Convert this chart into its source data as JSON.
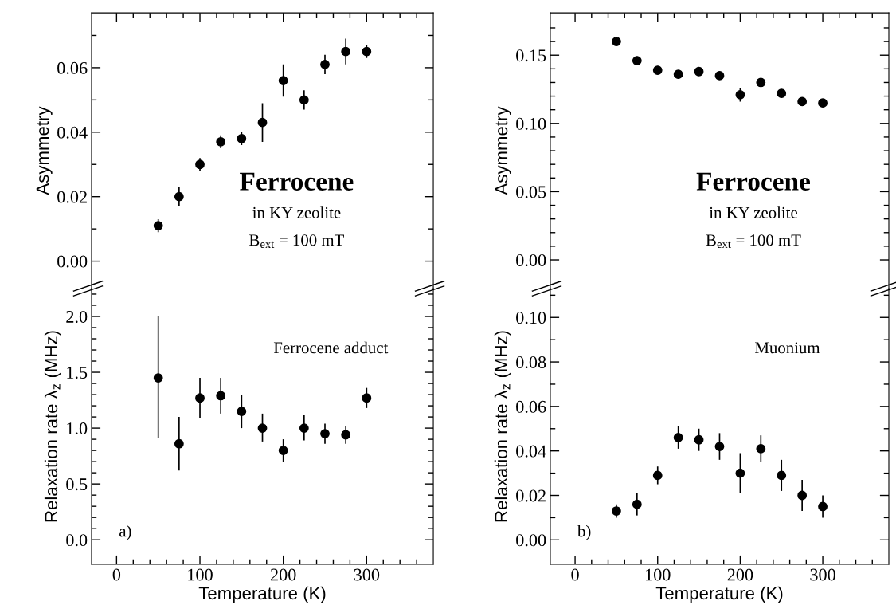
{
  "chart_data": [
    {
      "type": "scatter",
      "color": "#000000",
      "marker": "circle",
      "tick_labels": "y",
      "ylabel": "Asymmetry",
      "x": [
        50,
        75,
        100,
        125,
        150,
        175,
        200,
        225,
        250,
        275,
        300
      ],
      "values": [
        0.011,
        0.02,
        0.03,
        0.037,
        0.038,
        0.043,
        0.056,
        0.05,
        0.061,
        0.065,
        0.065
      ],
      "errors": [
        0.002,
        0.003,
        0.002,
        0.002,
        0.002,
        0.006,
        0.005,
        0.003,
        0.003,
        0.004,
        0.002
      ],
      "xlim": [
        -30,
        380
      ],
      "xticks": [
        0,
        {
          "value": 20,
          "label": null
        },
        {
          "value": 40,
          "label": null
        },
        {
          "value": 60,
          "label": null
        },
        {
          "value": 80,
          "label": null
        },
        100,
        {
          "value": 120,
          "label": null
        },
        {
          "value": 140,
          "label": null
        },
        {
          "value": 160,
          "label": null
        },
        {
          "value": 180,
          "label": null
        },
        200,
        {
          "value": 220,
          "label": null
        },
        {
          "value": 240,
          "label": null
        },
        {
          "value": 260,
          "label": null
        },
        {
          "value": 280,
          "label": null
        },
        300,
        {
          "value": 320,
          "label": null
        },
        {
          "value": 340,
          "label": null
        },
        {
          "value": 360,
          "label": null
        }
      ],
      "ylim": [
        -0.0085,
        0.077
      ],
      "yticks": [
        {
          "value": 0,
          "label": "0.00"
        },
        {
          "value": 0.01,
          "label": null
        },
        {
          "value": 0.02,
          "label": "0.02"
        },
        {
          "value": 0.03,
          "label": null
        },
        {
          "value": 0.04,
          "label": "0.04"
        },
        {
          "value": 0.05,
          "label": null
        },
        {
          "value": 0.06,
          "label": "0.06"
        },
        {
          "value": 0.07,
          "label": null
        }
      ],
      "annotations": [
        "Ferrocene",
        "in KY zeolite",
        "B$_{ext}$ = 100 mT"
      ]
    },
    {
      "type": "scatter",
      "color": "#000000",
      "marker": "circle",
      "xlabel": "Temperature (K)",
      "ylabel": "Relaxation rate λ$_{z}$ (MHz)",
      "x": [
        50,
        75,
        100,
        125,
        150,
        175,
        200,
        225,
        250,
        275,
        300
      ],
      "values": [
        1.45,
        0.86,
        1.27,
        1.29,
        1.15,
        1.0,
        0.8,
        1.0,
        0.95,
        0.94,
        1.27
      ],
      "errors": [
        [
          0.91,
          2.0
        ],
        [
          0.62,
          1.1
        ],
        0.18,
        [
          1.13,
          1.45
        ],
        [
          1.0,
          1.3
        ],
        [
          0.88,
          1.13
        ],
        0.1,
        [
          0.89,
          1.12
        ],
        0.09,
        0.08,
        0.09
      ],
      "xlim": [
        -30,
        380
      ],
      "xticks": [
        0,
        {
          "value": 20,
          "label": null
        },
        {
          "value": 40,
          "label": null
        },
        {
          "value": 60,
          "label": null
        },
        {
          "value": 80,
          "label": null
        },
        100,
        {
          "value": 120,
          "label": null
        },
        {
          "value": 140,
          "label": null
        },
        {
          "value": 160,
          "label": null
        },
        {
          "value": 180,
          "label": null
        },
        200,
        {
          "value": 220,
          "label": null
        },
        {
          "value": 240,
          "label": null
        },
        {
          "value": 260,
          "label": null
        },
        {
          "value": 280,
          "label": null
        },
        300,
        {
          "value": 320,
          "label": null
        },
        {
          "value": 340,
          "label": null
        },
        {
          "value": 360,
          "label": null
        }
      ],
      "ylim": [
        -0.22,
        2.25
      ],
      "yticks": [
        {
          "value": 0,
          "label": "0.0"
        },
        {
          "value": 0.1,
          "label": null
        },
        {
          "value": 0.2,
          "label": null
        },
        {
          "value": 0.3,
          "label": null
        },
        {
          "value": 0.4,
          "label": null
        },
        0.5,
        {
          "value": 0.6,
          "label": null
        },
        {
          "value": 0.7,
          "label": null
        },
        {
          "value": 0.8,
          "label": null
        },
        {
          "value": 0.9,
          "label": null
        },
        {
          "value": 1,
          "label": "1.0"
        },
        {
          "value": 1.1,
          "label": null
        },
        {
          "value": 1.2,
          "label": null
        },
        {
          "value": 1.3,
          "label": null
        },
        {
          "value": 1.4,
          "label": null
        },
        1.5,
        {
          "value": 1.6,
          "label": null
        },
        {
          "value": 1.7,
          "label": null
        },
        {
          "value": 1.8,
          "label": null
        },
        {
          "value": 1.9,
          "label": null
        },
        {
          "value": 2,
          "label": "2.0"
        },
        {
          "value": 2.1,
          "label": null
        },
        {
          "value": 2.2,
          "label": null
        }
      ],
      "annotations": [
        "Ferrocene adduct",
        "a)"
      ]
    },
    {
      "type": "scatter",
      "color": "#000000",
      "marker": "circle",
      "tick_labels": "y",
      "ylabel": "Asymmetry",
      "x": [
        50,
        75,
        100,
        125,
        150,
        175,
        200,
        225,
        250,
        275,
        300
      ],
      "values": [
        0.16,
        0.146,
        0.139,
        0.136,
        0.138,
        0.135,
        0.121,
        0.13,
        0.122,
        0.116,
        0.115
      ],
      "errors": [
        null,
        0.003,
        null,
        0.002,
        0.002,
        0.003,
        0.005,
        0.003,
        0.003,
        0.003,
        null
      ],
      "xlim": [
        -30,
        380
      ],
      "xticks": [
        0,
        {
          "value": 20,
          "label": null
        },
        {
          "value": 40,
          "label": null
        },
        {
          "value": 60,
          "label": null
        },
        {
          "value": 80,
          "label": null
        },
        100,
        {
          "value": 120,
          "label": null
        },
        {
          "value": 140,
          "label": null
        },
        {
          "value": 160,
          "label": null
        },
        {
          "value": 180,
          "label": null
        },
        200,
        {
          "value": 220,
          "label": null
        },
        {
          "value": 240,
          "label": null
        },
        {
          "value": 260,
          "label": null
        },
        {
          "value": 280,
          "label": null
        },
        300,
        {
          "value": 320,
          "label": null
        },
        {
          "value": 340,
          "label": null
        },
        {
          "value": 360,
          "label": null
        }
      ],
      "ylim": [
        -0.021,
        0.181
      ],
      "yticks": [
        {
          "value": 0,
          "label": "0.00"
        },
        {
          "value": 0.01,
          "label": null
        },
        {
          "value": 0.02,
          "label": null
        },
        {
          "value": 0.03,
          "label": null
        },
        {
          "value": 0.04,
          "label": null
        },
        0.05,
        {
          "value": 0.06,
          "label": null
        },
        {
          "value": 0.07,
          "label": null
        },
        {
          "value": 0.08,
          "label": null
        },
        {
          "value": 0.09,
          "label": null
        },
        {
          "value": 0.1,
          "label": "0.10"
        },
        {
          "value": 0.11,
          "label": null
        },
        {
          "value": 0.12,
          "label": null
        },
        {
          "value": 0.13,
          "label": null
        },
        {
          "value": 0.14,
          "label": null
        },
        0.15,
        {
          "value": 0.16,
          "label": null
        },
        {
          "value": 0.17,
          "label": null
        }
      ],
      "annotations": [
        "Ferrocene",
        "in KY zeolite",
        "B$_{ext}$ = 100 mT"
      ]
    },
    {
      "type": "scatter",
      "color": "#000000",
      "marker": "circle",
      "xlabel": "Temperature (K)",
      "ylabel": "Relaxation rate λ$_{z}$ (MHz)",
      "x": [
        50,
        75,
        100,
        125,
        150,
        175,
        200,
        225,
        250,
        275,
        300
      ],
      "values": [
        0.013,
        0.016,
        0.029,
        0.046,
        0.045,
        0.042,
        0.03,
        0.041,
        0.029,
        0.02,
        0.015
      ],
      "errors": [
        0.003,
        0.005,
        0.004,
        0.005,
        0.005,
        0.006,
        0.009,
        0.006,
        0.007,
        0.007,
        0.005
      ],
      "xlim": [
        -30,
        380
      ],
      "xticks": [
        0,
        {
          "value": 20,
          "label": null
        },
        {
          "value": 40,
          "label": null
        },
        {
          "value": 60,
          "label": null
        },
        {
          "value": 80,
          "label": null
        },
        100,
        {
          "value": 120,
          "label": null
        },
        {
          "value": 140,
          "label": null
        },
        {
          "value": 160,
          "label": null
        },
        {
          "value": 180,
          "label": null
        },
        200,
        {
          "value": 220,
          "label": null
        },
        {
          "value": 240,
          "label": null
        },
        {
          "value": 260,
          "label": null
        },
        {
          "value": 280,
          "label": null
        },
        300,
        {
          "value": 320,
          "label": null
        },
        {
          "value": 340,
          "label": null
        },
        {
          "value": 360,
          "label": null
        }
      ],
      "ylim": [
        -0.011,
        0.113
      ],
      "yticks": [
        {
          "value": 0,
          "label": "0.00"
        },
        {
          "value": 0.01,
          "label": null
        },
        {
          "value": 0.02,
          "label": "0.02"
        },
        {
          "value": 0.03,
          "label": null
        },
        {
          "value": 0.04,
          "label": "0.04"
        },
        {
          "value": 0.05,
          "label": null
        },
        {
          "value": 0.06,
          "label": "0.06"
        },
        {
          "value": 0.07,
          "label": null
        },
        {
          "value": 0.08,
          "label": "0.08"
        },
        {
          "value": 0.09,
          "label": null
        },
        {
          "value": 0.1,
          "label": "0.10"
        },
        {
          "value": 0.11,
          "label": null
        }
      ],
      "annotations": [
        "Muonium",
        "b)"
      ]
    }
  ]
}
